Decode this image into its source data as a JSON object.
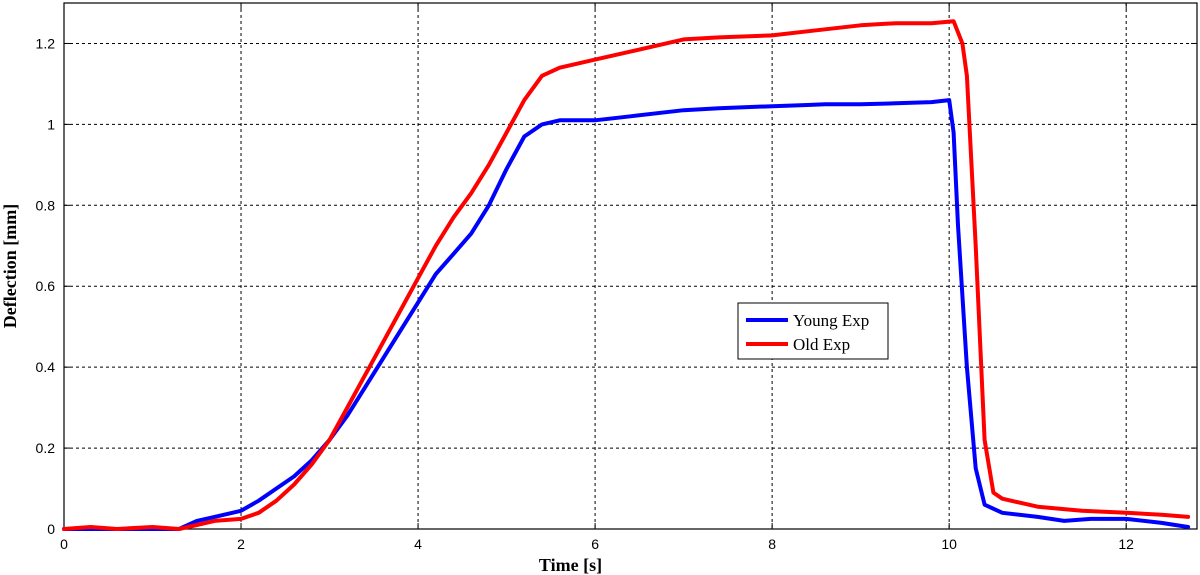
{
  "chart_data": {
    "type": "line",
    "title": "",
    "xlabel": "Time [s]",
    "ylabel": "Deflection [mm]",
    "xlim": [
      0,
      12.8
    ],
    "ylim": [
      0,
      1.3
    ],
    "xticks": [
      0,
      2,
      4,
      6,
      8,
      10,
      12
    ],
    "yticks": [
      0,
      0.2,
      0.4,
      0.6,
      0.8,
      1,
      1.2
    ],
    "xtick_labels": [
      "0",
      "2",
      "4",
      "6",
      "8",
      "10",
      "12"
    ],
    "ytick_labels": [
      "0",
      "0.2",
      "0.4",
      "0.6",
      "0.8",
      "1",
      "1.2"
    ],
    "grid": true,
    "legend_position": "center-right",
    "series": [
      {
        "name": "Young Exp",
        "color": "#0000ff",
        "x": [
          0,
          0.3,
          0.6,
          1.0,
          1.3,
          1.5,
          1.7,
          2.0,
          2.2,
          2.4,
          2.6,
          2.8,
          3.0,
          3.2,
          3.4,
          3.6,
          3.8,
          4.0,
          4.2,
          4.4,
          4.6,
          4.8,
          5.0,
          5.2,
          5.4,
          5.6,
          6.0,
          6.4,
          7.0,
          7.4,
          8.0,
          8.4,
          8.6,
          9.0,
          9.4,
          9.8,
          10.0,
          10.05,
          10.1,
          10.2,
          10.3,
          10.4,
          10.6,
          11.0,
          11.3,
          11.6,
          12.0,
          12.4,
          12.7
        ],
        "y": [
          0,
          0,
          0,
          0,
          0,
          0.02,
          0.03,
          0.045,
          0.07,
          0.1,
          0.13,
          0.17,
          0.22,
          0.28,
          0.35,
          0.42,
          0.49,
          0.56,
          0.63,
          0.68,
          0.73,
          0.8,
          0.89,
          0.97,
          1.0,
          1.01,
          1.01,
          1.02,
          1.035,
          1.04,
          1.045,
          1.048,
          1.05,
          1.05,
          1.052,
          1.055,
          1.06,
          0.98,
          0.75,
          0.4,
          0.15,
          0.06,
          0.04,
          0.03,
          0.02,
          0.025,
          0.025,
          0.015,
          0.005
        ]
      },
      {
        "name": "Old Exp",
        "color": "#ff0000",
        "x": [
          0,
          0.3,
          0.6,
          1.0,
          1.3,
          1.5,
          1.7,
          2.0,
          2.2,
          2.4,
          2.6,
          2.8,
          3.0,
          3.2,
          3.4,
          3.6,
          3.8,
          4.0,
          4.2,
          4.4,
          4.6,
          4.8,
          5.0,
          5.2,
          5.4,
          5.6,
          6.0,
          6.4,
          7.0,
          7.4,
          8.0,
          8.4,
          8.6,
          9.0,
          9.4,
          9.8,
          10.05,
          10.15,
          10.2,
          10.3,
          10.4,
          10.5,
          10.6,
          10.8,
          11.0,
          11.5,
          12.0,
          12.4,
          12.7
        ],
        "y": [
          0,
          0.005,
          0,
          0.005,
          0,
          0.01,
          0.02,
          0.025,
          0.04,
          0.07,
          0.11,
          0.16,
          0.22,
          0.3,
          0.38,
          0.46,
          0.54,
          0.62,
          0.7,
          0.77,
          0.83,
          0.9,
          0.98,
          1.06,
          1.12,
          1.14,
          1.16,
          1.18,
          1.21,
          1.215,
          1.22,
          1.23,
          1.235,
          1.245,
          1.25,
          1.25,
          1.255,
          1.2,
          1.12,
          0.7,
          0.22,
          0.09,
          0.075,
          0.065,
          0.055,
          0.045,
          0.04,
          0.035,
          0.03
        ]
      }
    ]
  }
}
